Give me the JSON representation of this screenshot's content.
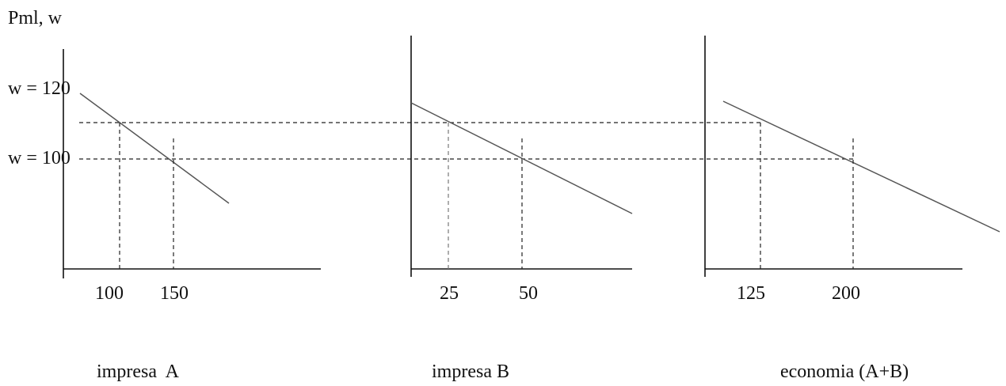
{
  "chart_data": {
    "type": "line",
    "ylabel": "Pml, w",
    "y_tick_labels": [
      "w = 120",
      "w = 100"
    ],
    "panels": [
      {
        "title": "impresa  A",
        "x_tick_labels": [
          "100",
          "150"
        ],
        "series": [
          {
            "x": [
              100,
              150
            ],
            "y": [
              120,
              100
            ]
          }
        ]
      },
      {
        "title": "impresa B",
        "x_tick_labels": [
          "25",
          "50"
        ],
        "series": [
          {
            "x": [
              25,
              50
            ],
            "y": [
              120,
              100
            ]
          }
        ]
      },
      {
        "title": "economia (A+B)",
        "x_tick_labels": [
          "125",
          "200"
        ],
        "series": [
          {
            "x": [
              125,
              200
            ],
            "y": [
              120,
              100
            ]
          }
        ]
      }
    ]
  }
}
